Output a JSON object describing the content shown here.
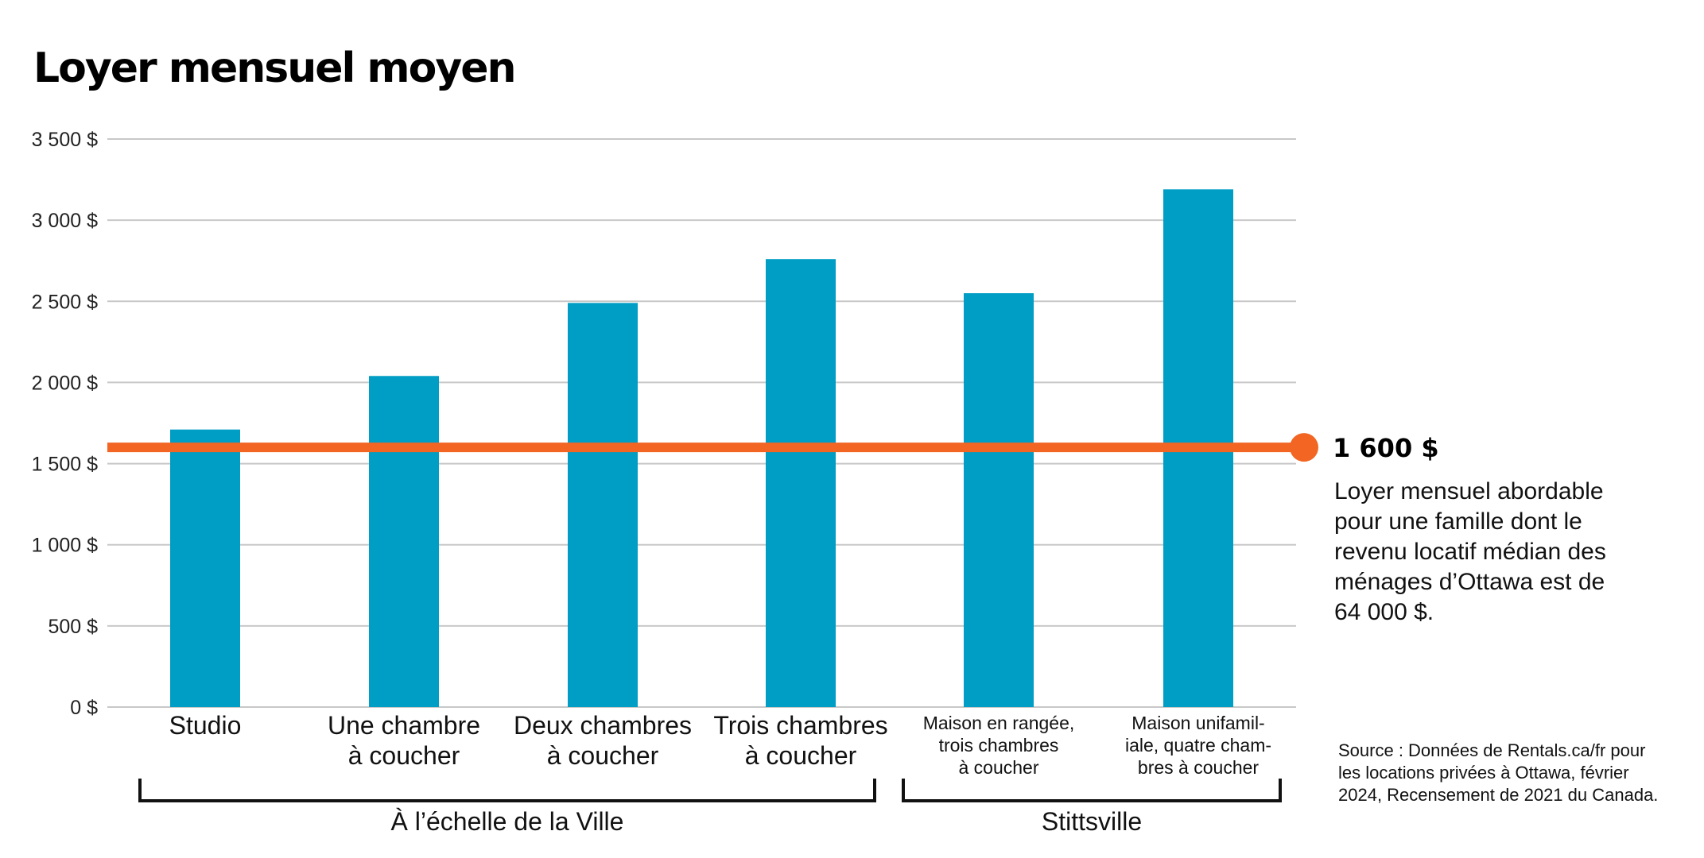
{
  "chart_data": {
    "type": "bar",
    "title": "Loyer mensuel moyen",
    "categories": [
      [
        "Studio"
      ],
      [
        "Une chambre",
        "à coucher"
      ],
      [
        "Deux chambres",
        "à coucher"
      ],
      [
        "Trois chambres",
        "à coucher"
      ],
      [
        "Maison en rangée,",
        "trois chambres",
        "à coucher"
      ],
      [
        "Maison unifamil-",
        "iale, quatre cham-",
        "bres à coucher"
      ]
    ],
    "values": [
      1710,
      2040,
      2490,
      2760,
      2550,
      3190
    ],
    "ylim": [
      0,
      3500
    ],
    "yticks": [
      0,
      500,
      1000,
      1500,
      2000,
      2500,
      3000,
      3500
    ],
    "ytick_labels": [
      "0 $",
      "500 $",
      "1 000 $",
      "1 500 $",
      "2 000 $",
      "2 500 $",
      "3 000 $",
      "3 500 $"
    ],
    "grid": true,
    "groups": [
      {
        "label": "À l’échelle de la Ville",
        "categories": [
          0,
          1,
          2,
          3
        ]
      },
      {
        "label": "Stittsville",
        "categories": [
          4,
          5
        ]
      }
    ],
    "reference_line": {
      "value": 1600,
      "label": "1 600 $",
      "description": [
        "Loyer mensuel abordable",
        "pour une famille dont le",
        "revenu locatif médian des",
        "ménages d’Ottawa est de",
        "64 000 $."
      ]
    },
    "source": [
      "Source : Données de Rentals.ca/fr pour",
      "les locations privées à Ottawa, février",
      "2024, Recensement de 2021 du Canada."
    ],
    "colors": {
      "bar": "#009dc4",
      "reference": "#f26522",
      "grid": "#c8c8c8",
      "axis": "#999999",
      "text": "#111111"
    }
  }
}
